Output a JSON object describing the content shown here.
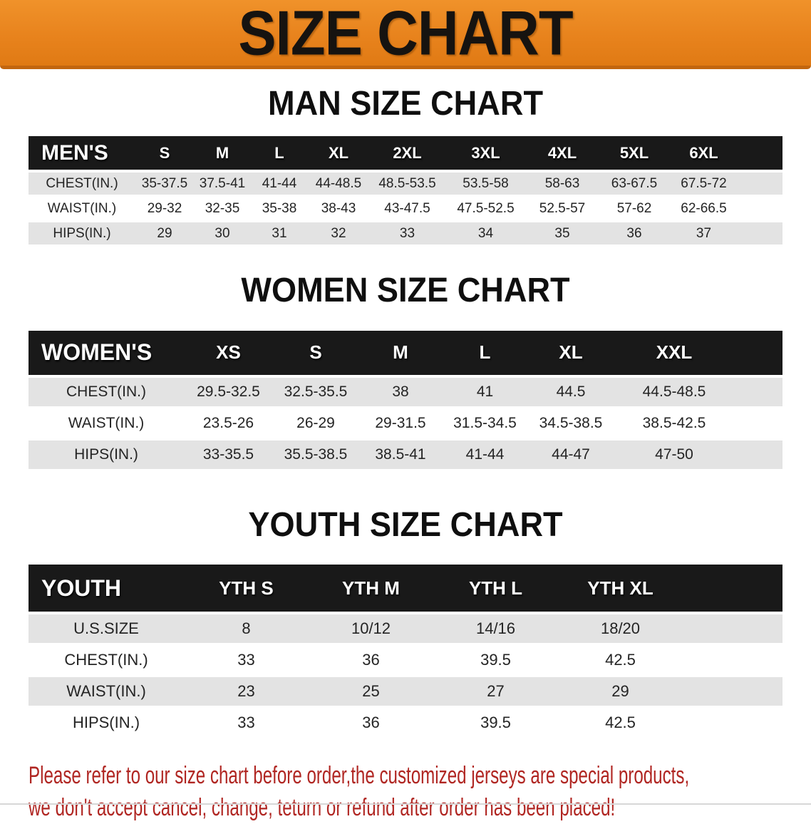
{
  "banner": {
    "title": "SIZE CHART"
  },
  "colors": {
    "banner_orange": "#e8831d",
    "banner_edge": "#c2660f",
    "table_header_black": "#191919",
    "row_band_gray": "#e3e3e3",
    "disclaimer_red": "#b02622"
  },
  "sections": [
    {
      "heading": "MAN SIZE CHART",
      "table": {
        "label": "MEN'S",
        "columns": [
          "S",
          "M",
          "L",
          "XL",
          "2XL",
          "3XL",
          "4XL",
          "5XL",
          "6XL"
        ],
        "rows": [
          {
            "label": "CHEST(IN.)",
            "values": [
              "35-37.5",
              "37.5-41",
              "41-44",
              "44-48.5",
              "48.5-53.5",
              "53.5-58",
              "58-63",
              "63-67.5",
              "67.5-72"
            ]
          },
          {
            "label": "WAIST(IN.)",
            "values": [
              "29-32",
              "32-35",
              "35-38",
              "38-43",
              "43-47.5",
              "47.5-52.5",
              "52.5-57",
              "57-62",
              "62-66.5"
            ]
          },
          {
            "label": "HIPS(IN.)",
            "values": [
              "29",
              "30",
              "31",
              "32",
              "33",
              "34",
              "35",
              "36",
              "37"
            ]
          }
        ]
      }
    },
    {
      "heading": "WOMEN SIZE CHART",
      "table": {
        "label": "WOMEN'S",
        "columns": [
          "XS",
          "S",
          "M",
          "L",
          "XL",
          "XXL"
        ],
        "rows": [
          {
            "label": "CHEST(IN.)",
            "values": [
              "29.5-32.5",
              "32.5-35.5",
              "38",
              "41",
              "44.5",
              "44.5-48.5"
            ]
          },
          {
            "label": "WAIST(IN.)",
            "values": [
              "23.5-26",
              "26-29",
              "29-31.5",
              "31.5-34.5",
              "34.5-38.5",
              "38.5-42.5"
            ]
          },
          {
            "label": "HIPS(IN.)",
            "values": [
              "33-35.5",
              "35.5-38.5",
              "38.5-41",
              "41-44",
              "44-47",
              "47-50"
            ]
          }
        ]
      }
    },
    {
      "heading": "YOUTH SIZE CHART",
      "table": {
        "label": "YOUTH",
        "columns": [
          "YTH S",
          "YTH M",
          "YTH L",
          "YTH XL"
        ],
        "rows": [
          {
            "label": "U.S.SIZE",
            "values": [
              "8",
              "10/12",
              "14/16",
              "18/20"
            ]
          },
          {
            "label": "CHEST(IN.)",
            "values": [
              "33",
              "36",
              "39.5",
              "42.5"
            ]
          },
          {
            "label": "WAIST(IN.)",
            "values": [
              "23",
              "25",
              "27",
              "29"
            ]
          },
          {
            "label": "HIPS(IN.)",
            "values": [
              "33",
              "36",
              "39.5",
              "42.5"
            ]
          }
        ]
      }
    }
  ],
  "footer": {
    "line1": "Please refer to our size chart before order,the customized jerseys are special products,",
    "line2": "we don't accept cancel, change, teturn or refund after order has been placed!"
  }
}
